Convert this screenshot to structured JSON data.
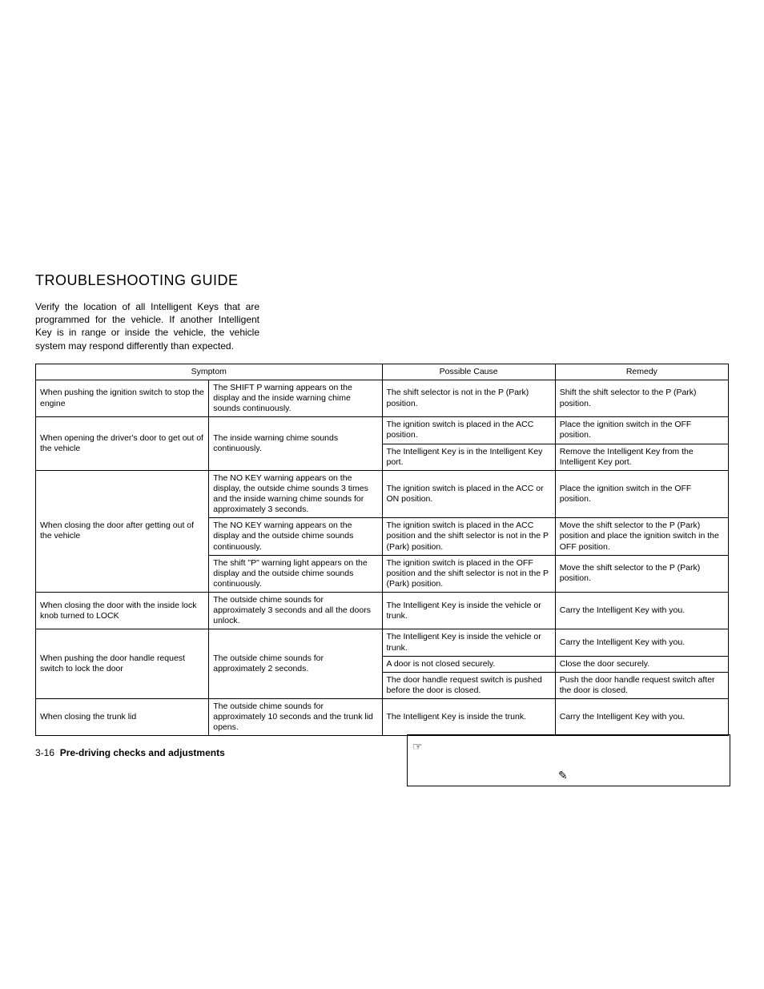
{
  "title": "TROUBLESHOOTING GUIDE",
  "intro": "Verify the location of all Intelligent Keys that are programmed for the vehicle. If another Intelligent Key is in range or inside the vehicle, the vehicle system may respond differently than expected.",
  "table": {
    "headers": {
      "symptom": "Symptom",
      "cause": "Possible Cause",
      "remedy": "Remedy"
    },
    "rows": [
      {
        "symptom": "When pushing the ignition switch to stop the engine",
        "indicator": "The SHIFT P warning appears on the display and the inside warning chime sounds continuously.",
        "cause": "The shift selector is not in the P (Park) position.",
        "remedy": "Shift the shift selector to the P (Park) position."
      },
      {
        "symptom": "When opening the driver's door to get out of the vehicle",
        "indicator": "The inside warning chime sounds continuously.",
        "cause": "The ignition switch is placed in the ACC position.",
        "remedy": "Place the ignition switch in the OFF position."
      },
      {
        "cause": "The Intelligent Key is in the Intelligent Key port.",
        "remedy": "Remove the Intelligent Key from the Intelligent Key port."
      },
      {
        "symptom": "When closing the door after getting out of the vehicle",
        "indicator": "The NO KEY warning appears on the display, the outside chime sounds 3 times and the inside warning chime sounds for approximately 3 seconds.",
        "cause": "The ignition switch is placed in the ACC or ON position.",
        "remedy": "Place the ignition switch in the OFF position."
      },
      {
        "indicator": "The NO KEY warning appears on the display and the outside chime sounds continuously.",
        "cause": "The ignition switch is placed in the ACC position and the shift selector is not in the P (Park) position.",
        "remedy": "Move the shift selector to the P (Park) position and place the ignition switch in the OFF position."
      },
      {
        "indicator": "The shift \"P\" warning light appears on the display and the outside chime sounds continuously.",
        "cause": "The ignition switch is placed in the OFF position and the shift selector is not in the P (Park) position.",
        "remedy": "Move the shift selector to the P (Park) position."
      },
      {
        "symptom": "When closing the door with the inside lock knob turned to LOCK",
        "indicator": "The outside chime sounds for approximately 3 seconds and all the doors unlock.",
        "cause": "The Intelligent Key is inside the vehicle or trunk.",
        "remedy": "Carry the Intelligent Key with you."
      },
      {
        "symptom": "When pushing the door handle request switch to lock the door",
        "indicator": "The outside chime sounds for approximately 2 seconds.",
        "cause": "The Intelligent Key is inside the vehicle or trunk.",
        "remedy": "Carry the Intelligent Key with you."
      },
      {
        "cause": "A door is not closed securely.",
        "remedy": "Close the door securely."
      },
      {
        "cause": "The door handle request switch is pushed before the door is closed.",
        "remedy": "Push the door handle request switch after the door is closed."
      },
      {
        "symptom": "When closing the trunk lid",
        "indicator": "The outside chime sounds for approximately 10 seconds and the trunk lid opens.",
        "cause": "The Intelligent Key is inside the trunk.",
        "remedy": "Carry the Intelligent Key with you."
      }
    ]
  },
  "footer": {
    "page": "3-16",
    "section": "Pre-driving checks and adjustments"
  },
  "callout": {
    "icon1": "☞",
    "icon2": "✎"
  },
  "style": {
    "background": "#ffffff",
    "text_color": "#000000",
    "border_color": "#000000",
    "title_fontsize": 18,
    "intro_fontsize": 12,
    "table_fontsize": 10.5,
    "footer_fontsize": 12
  }
}
